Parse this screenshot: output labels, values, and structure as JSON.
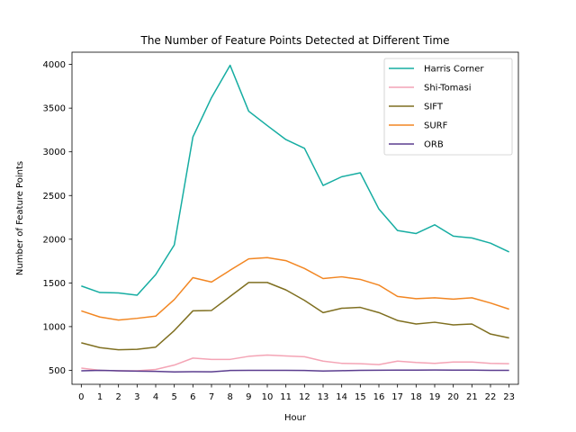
{
  "chart_data": {
    "type": "line",
    "title": "The Number of Feature Points Detected at Different Time",
    "xlabel": "Hour",
    "ylabel": "Number of Feature Points",
    "x": [
      0,
      1,
      2,
      3,
      4,
      5,
      6,
      7,
      8,
      9,
      10,
      11,
      12,
      13,
      14,
      15,
      16,
      17,
      18,
      19,
      20,
      21,
      22,
      23
    ],
    "xlim": [
      -0.5,
      23.5
    ],
    "ylim": [
      340,
      4140
    ],
    "yticks": [
      500,
      1000,
      1500,
      2000,
      2500,
      3000,
      3500,
      4000
    ],
    "grid": false,
    "legend_position": "top-right",
    "series": [
      {
        "name": "Harris Corner",
        "color": "#16ada2",
        "values": [
          1465,
          1390,
          1385,
          1360,
          1595,
          1935,
          3170,
          3620,
          3990,
          3465,
          3300,
          3140,
          3040,
          2615,
          2715,
          2760,
          2345,
          2100,
          2065,
          2165,
          2035,
          2015,
          1955,
          1855
        ]
      },
      {
        "name": "Shi-Tomasi",
        "color": "#f4a4b5",
        "values": [
          525,
          500,
          495,
          495,
          510,
          560,
          640,
          625,
          625,
          660,
          675,
          665,
          655,
          605,
          580,
          575,
          565,
          605,
          590,
          580,
          595,
          595,
          580,
          575
        ]
      },
      {
        "name": "SIFT",
        "color": "#7f6f20",
        "values": [
          815,
          760,
          735,
          740,
          765,
          955,
          1180,
          1185,
          1345,
          1505,
          1505,
          1420,
          1300,
          1160,
          1210,
          1220,
          1160,
          1070,
          1030,
          1050,
          1020,
          1030,
          915,
          870
        ]
      },
      {
        "name": "SURF",
        "color": "#f28622",
        "values": [
          1180,
          1110,
          1075,
          1095,
          1120,
          1310,
          1560,
          1510,
          1645,
          1775,
          1790,
          1755,
          1665,
          1550,
          1570,
          1540,
          1475,
          1345,
          1320,
          1330,
          1315,
          1330,
          1270,
          1200
        ]
      },
      {
        "name": "ORB",
        "color": "#5b3d8f",
        "values": [
          495,
          500,
          495,
          490,
          488,
          482,
          484,
          483,
          498,
          500,
          500,
          500,
          498,
          492,
          496,
          500,
          501,
          502,
          502,
          503,
          502,
          502,
          500,
          499
        ]
      }
    ]
  }
}
